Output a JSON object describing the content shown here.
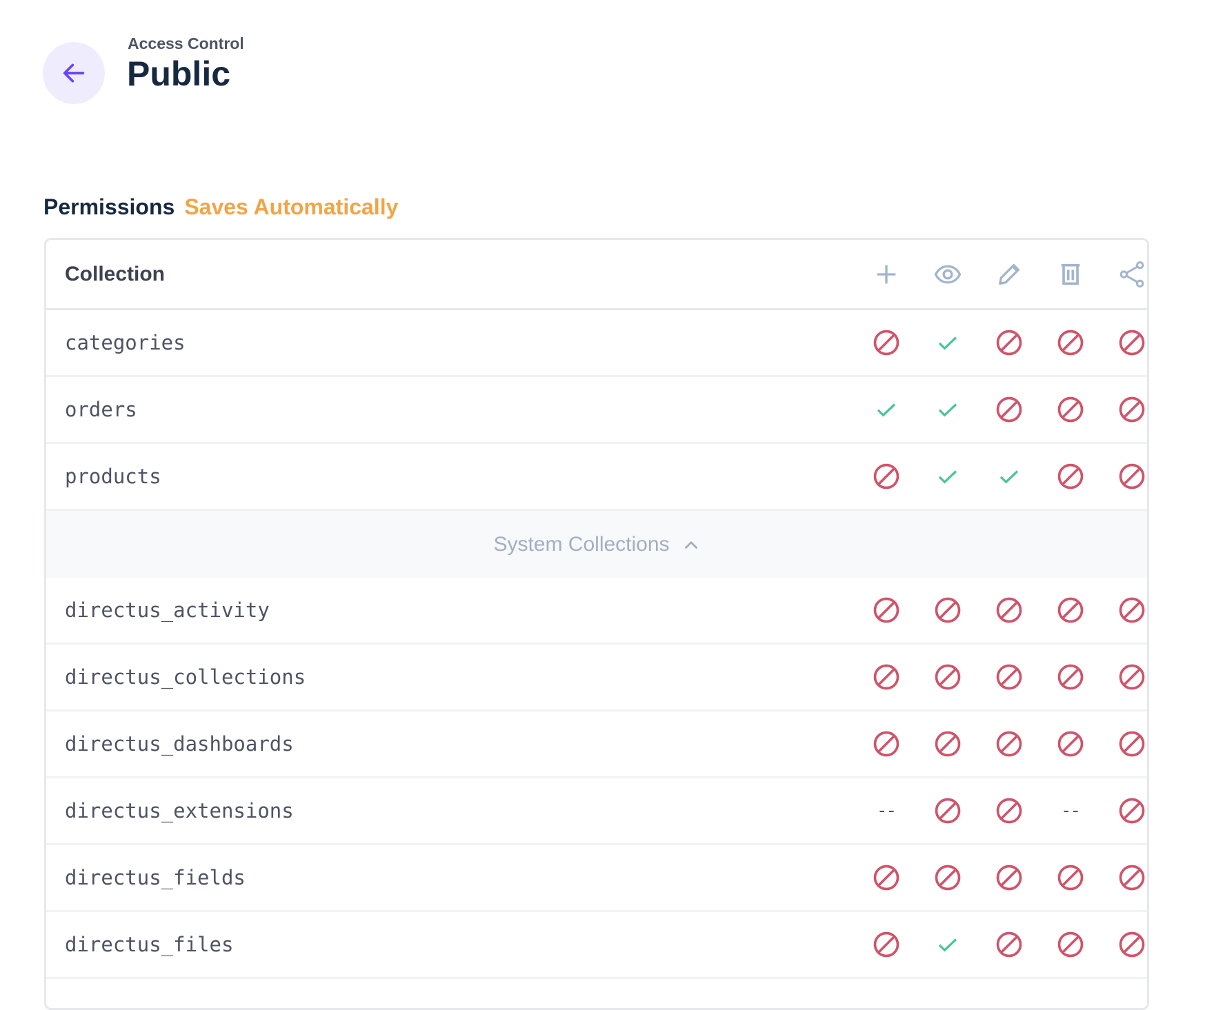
{
  "header": {
    "breadcrumb": "Access Control",
    "title": "Public"
  },
  "section": {
    "title": "Permissions",
    "status": "Saves Automatically"
  },
  "colors": {
    "accent": "#6644ff",
    "allow": "#4cc49a",
    "deny": "#d0546a",
    "status": "#f0a549",
    "header_icon": "#a2b5cd"
  },
  "table": {
    "column_header": "Collection",
    "action_icons": [
      "plus-icon",
      "eye-icon",
      "pencil-icon",
      "trash-icon",
      "share-icon"
    ],
    "actions": [
      "create",
      "read",
      "update",
      "delete",
      "share"
    ],
    "rows": [
      {
        "name": "categories",
        "cells": [
          "deny",
          "allow",
          "deny",
          "deny",
          "deny"
        ]
      },
      {
        "name": "orders",
        "cells": [
          "allow",
          "allow",
          "deny",
          "deny",
          "deny"
        ]
      },
      {
        "name": "products",
        "cells": [
          "deny",
          "allow",
          "allow",
          "deny",
          "deny"
        ]
      }
    ],
    "system_toggle": "System Collections",
    "system_rows": [
      {
        "name": "directus_activity",
        "cells": [
          "deny",
          "deny",
          "deny",
          "deny",
          "deny"
        ]
      },
      {
        "name": "directus_collections",
        "cells": [
          "deny",
          "deny",
          "deny",
          "deny",
          "deny"
        ]
      },
      {
        "name": "directus_dashboards",
        "cells": [
          "deny",
          "deny",
          "deny",
          "deny",
          "deny"
        ]
      },
      {
        "name": "directus_extensions",
        "cells": [
          "none",
          "deny",
          "deny",
          "none",
          "deny"
        ]
      },
      {
        "name": "directus_fields",
        "cells": [
          "deny",
          "deny",
          "deny",
          "deny",
          "deny"
        ]
      },
      {
        "name": "directus_files",
        "cells": [
          "deny",
          "allow",
          "deny",
          "deny",
          "deny"
        ]
      }
    ],
    "none_label": "--"
  }
}
